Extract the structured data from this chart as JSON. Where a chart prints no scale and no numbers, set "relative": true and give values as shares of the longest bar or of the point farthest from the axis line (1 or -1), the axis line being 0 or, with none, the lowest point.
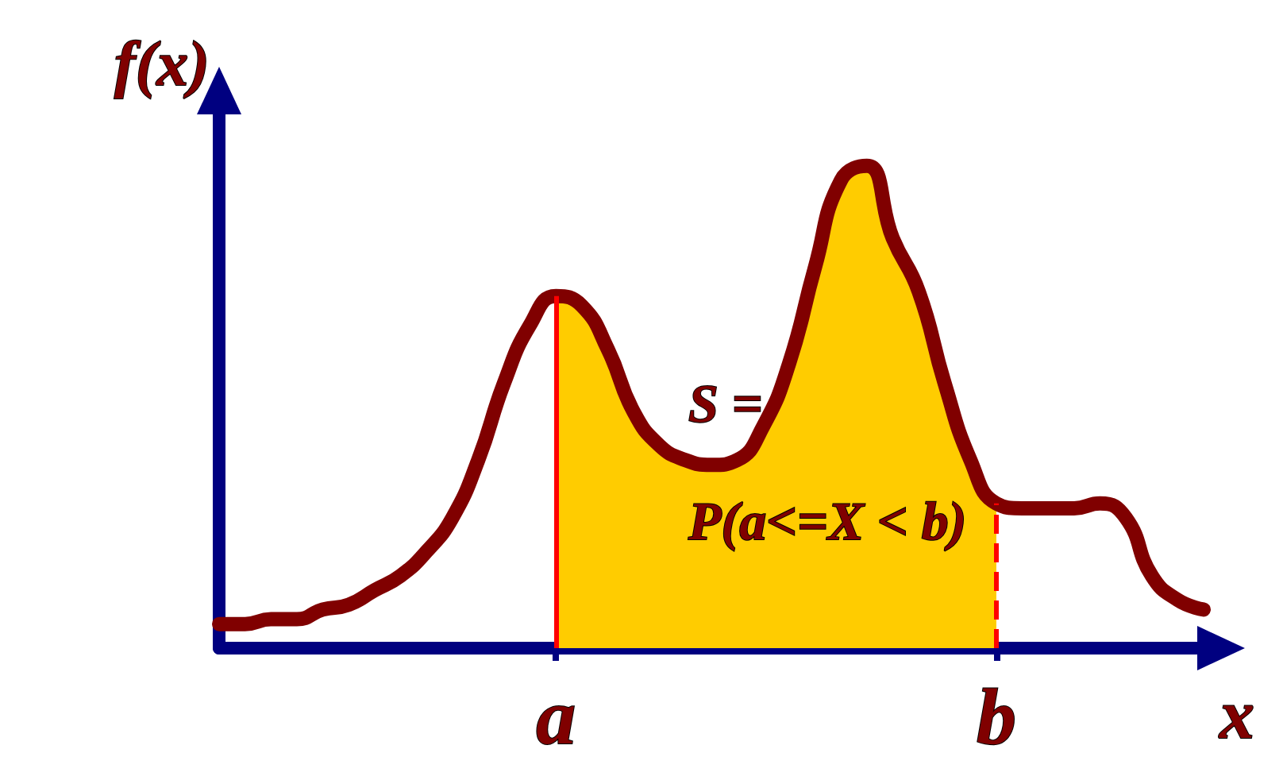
{
  "chart_data": {
    "type": "line",
    "relative": true,
    "xlabel": "x",
    "ylabel": "f(x)",
    "categories": [
      null,
      null,
      null,
      null,
      null,
      null,
      null,
      null,
      null,
      null,
      null,
      null,
      null,
      "a",
      null,
      null,
      null,
      null,
      null,
      null,
      null,
      null,
      null,
      null,
      null,
      null,
      null,
      null,
      null,
      null,
      "b",
      null,
      null,
      null,
      null,
      null,
      null,
      null,
      null
    ],
    "series": [
      {
        "color": "#800000",
        "values": [
          0.05,
          0.05,
          0.06,
          0.06,
          0.08,
          0.09,
          0.12,
          0.15,
          0.2,
          0.27,
          0.39,
          0.55,
          0.67,
          0.73,
          0.71,
          0.62,
          0.49,
          0.42,
          0.39,
          0.38,
          0.39,
          0.46,
          0.59,
          0.79,
          0.97,
          1,
          0.85,
          0.74,
          0.55,
          0.39,
          0.3,
          0.29,
          0.29,
          0.29,
          0.3,
          0.27,
          0.15,
          0.1,
          0.08
        ]
      },
      {
        "type": "area",
        "color": "#ffcc00",
        "values": [
          null,
          null,
          null,
          null,
          null,
          null,
          null,
          null,
          null,
          null,
          null,
          null,
          null,
          0.73,
          0.71,
          0.62,
          0.49,
          0.42,
          0.39,
          0.38,
          0.39,
          0.46,
          0.59,
          0.79,
          0.97,
          1,
          0.85,
          0.74,
          0.55,
          0.39,
          0.3,
          null,
          null,
          null,
          null,
          null,
          null,
          null,
          null
        ]
      }
    ],
    "annotations": [
      "S =\nP(a<=X < b)"
    ],
    "ref_lines": [
      {
        "axis": "x",
        "value": "a",
        "color": "#ff0000",
        "line_style": "solid"
      },
      {
        "axis": "x",
        "value": "b",
        "color": "#ff0000",
        "line_style": "dashed"
      }
    ],
    "grid": false,
    "line_style": "solid"
  }
}
